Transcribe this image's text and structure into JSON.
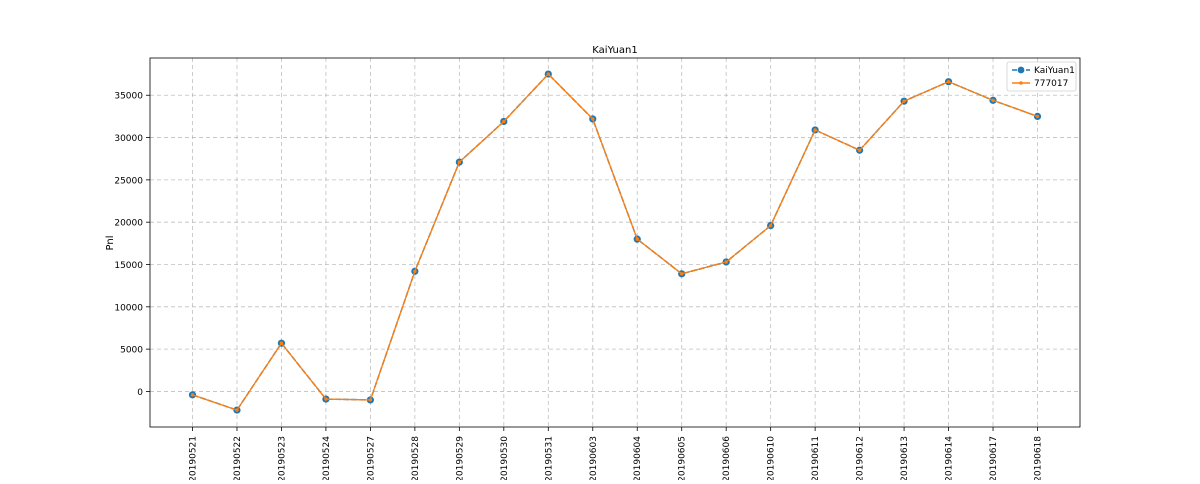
{
  "chart_data": {
    "type": "line",
    "title": "KaiYuan1",
    "xlabel": "",
    "ylabel": "Pnl",
    "categories": [
      "20190521",
      "20190522",
      "20190523",
      "20190524",
      "20190527",
      "20190528",
      "20190529",
      "20190530",
      "20190531",
      "20190603",
      "20190604",
      "20190605",
      "20190606",
      "20190610",
      "20190611",
      "20190612",
      "20190613",
      "20190614",
      "20190617",
      "20190618"
    ],
    "yticks": [
      0,
      5000,
      10000,
      15000,
      20000,
      25000,
      30000,
      35000
    ],
    "ylim": [
      -4200,
      39400
    ],
    "grid": true,
    "legend_position": "top-right",
    "series": [
      {
        "name": "KaiYuan1",
        "color": "#1f77b4",
        "marker": "circle",
        "linestyle": "dashed",
        "values": [
          -400,
          -2200,
          5700,
          -900,
          -1000,
          14200,
          27100,
          31900,
          37500,
          32200,
          18000,
          13900,
          15300,
          19600,
          30900,
          28500,
          34300,
          36600,
          34400,
          32500
        ]
      },
      {
        "name": "777017",
        "color": "#ff7f0e",
        "marker": "point",
        "linestyle": "solid",
        "values": [
          -400,
          -2200,
          5700,
          -900,
          -1000,
          14200,
          27100,
          31900,
          37500,
          32200,
          18000,
          13900,
          15300,
          19600,
          30900,
          28500,
          34300,
          36600,
          34400,
          32500
        ]
      }
    ]
  }
}
